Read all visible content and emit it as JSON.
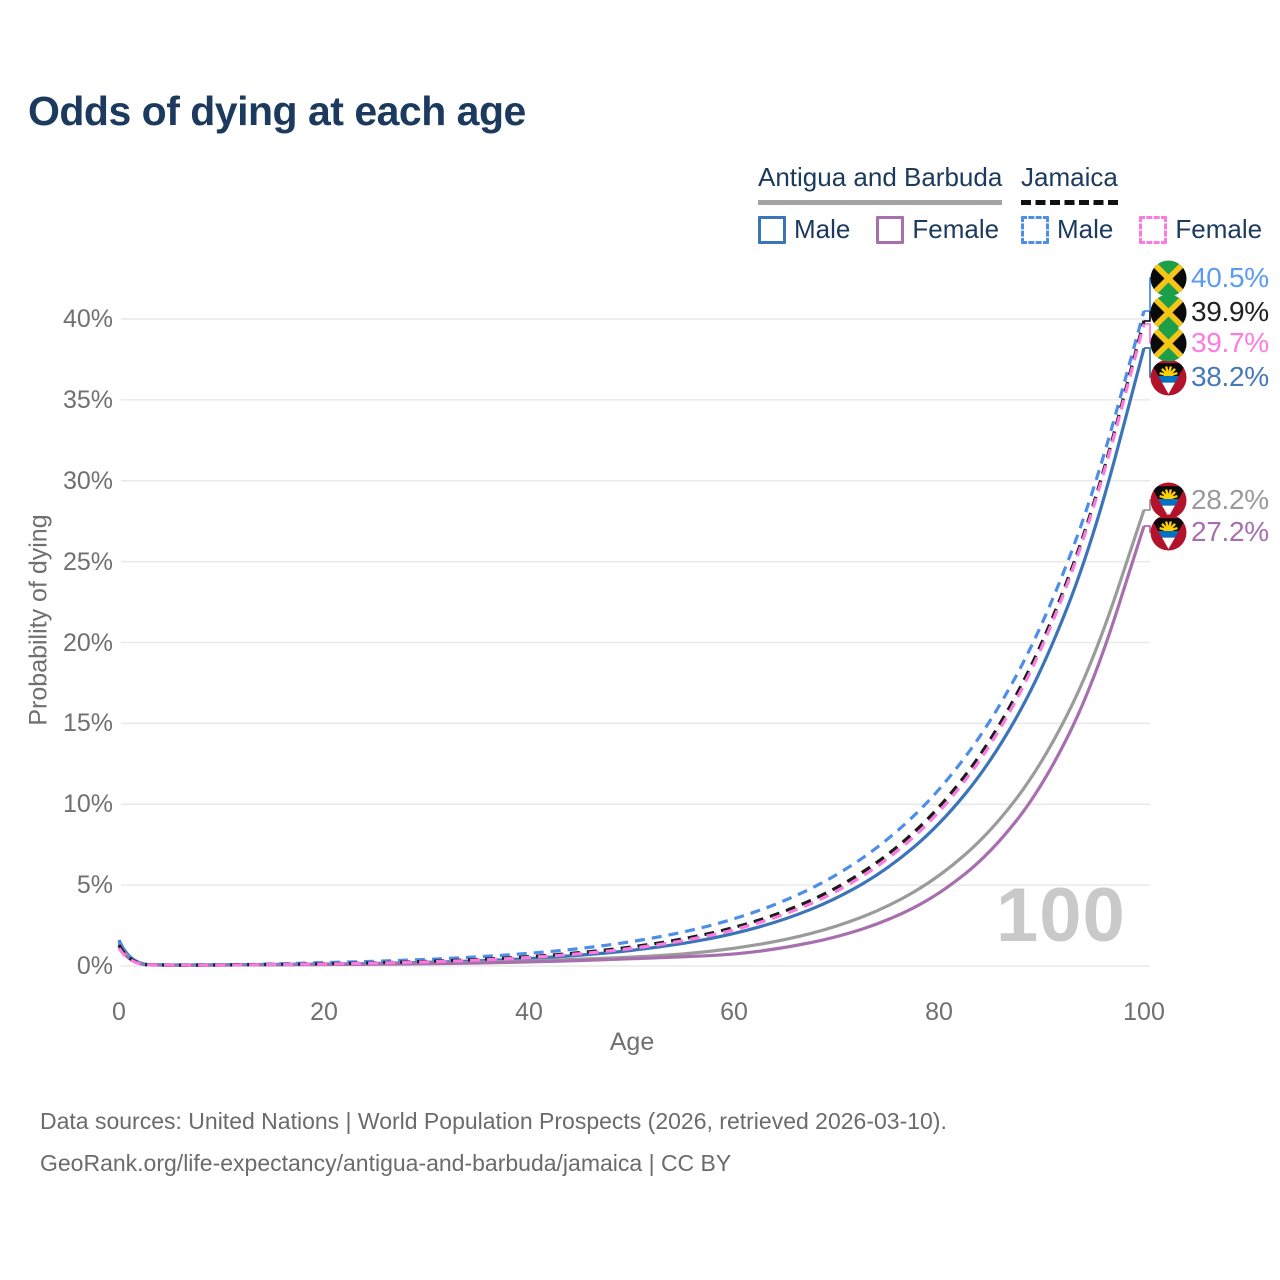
{
  "title": "Odds of dying at each age",
  "watermark": "100",
  "colors": {
    "title_navy": "#1b3a5e",
    "axis_text": "#707070",
    "gridline": "#e9e9e9",
    "watermark_gray": "#c9c9c9",
    "source_text": "#6b6b6b",
    "antigua_underline": "#a3a3a3",
    "jamaica_underline": "#111111"
  },
  "legend": {
    "groups": [
      {
        "label": "Antigua and Barbuda",
        "line_style": "solid",
        "underline_color": "#a3a3a3",
        "items": [
          {
            "label": "Male",
            "color": "#3c74b9",
            "dashed": false
          },
          {
            "label": "Female",
            "color": "#a76fae",
            "dashed": false
          }
        ]
      },
      {
        "label": "Jamaica",
        "line_style": "dashed",
        "underline_color": "#111111",
        "items": [
          {
            "label": "Male",
            "color": "#4d8ee8",
            "dashed": true
          },
          {
            "label": "Female",
            "color": "#fa7ae0",
            "dashed": true
          }
        ]
      }
    ]
  },
  "chart_data": {
    "type": "line",
    "title": "Odds of dying at each age",
    "xlabel": "Age",
    "ylabel": "Probability of dying",
    "xlim": [
      0,
      100
    ],
    "ylim": [
      0,
      40
    ],
    "x_ticks": [
      0,
      20,
      40,
      60,
      80,
      100
    ],
    "y_ticks": [
      0,
      5,
      10,
      15,
      20,
      25,
      30,
      35,
      40
    ],
    "y_tick_suffix": "%",
    "grid": "horizontal",
    "legend_position": "top-right",
    "x": [
      0,
      1,
      5,
      10,
      15,
      20,
      25,
      30,
      35,
      40,
      45,
      50,
      55,
      60,
      65,
      70,
      75,
      80,
      85,
      90,
      95,
      100
    ],
    "series": [
      {
        "id": "antigua-male",
        "name": "Antigua and Barbuda — Male",
        "country": "Antigua and Barbuda",
        "sex": "Male",
        "color": "#3c74b9",
        "label_color": "#4679b8",
        "dash": false,
        "flag": "antigua",
        "end_label": "38.2%",
        "values": [
          1.6,
          0.11,
          0.06,
          0.07,
          0.1,
          0.12,
          0.15,
          0.22,
          0.31,
          0.45,
          0.66,
          0.95,
          1.37,
          1.98,
          2.87,
          4.14,
          5.99,
          8.66,
          12.52,
          18.1,
          26.17,
          38.2
        ]
      },
      {
        "id": "antigua-both",
        "name": "Antigua and Barbuda — Both sexes",
        "country": "Antigua and Barbuda",
        "sex": "Both",
        "color": "#9b9b9b",
        "label_color": "#9a9a9a",
        "dash": false,
        "flag": "antigua",
        "end_label": "28.2%",
        "values": [
          1.4,
          0.1,
          0.05,
          0.06,
          0.09,
          0.1,
          0.13,
          0.17,
          0.23,
          0.31,
          0.42,
          0.55,
          0.72,
          1.07,
          1.61,
          2.42,
          3.64,
          5.48,
          8.24,
          12.39,
          18.65,
          28.2
        ]
      },
      {
        "id": "antigua-female",
        "name": "Antigua and Barbuda — Female",
        "country": "Antigua and Barbuda",
        "sex": "Female",
        "color": "#a76fae",
        "label_color": "#a76fae",
        "dash": false,
        "flag": "antigua",
        "end_label": "27.2%",
        "values": [
          1.2,
          0.09,
          0.04,
          0.05,
          0.08,
          0.09,
          0.11,
          0.14,
          0.18,
          0.25,
          0.33,
          0.45,
          0.56,
          0.71,
          1.12,
          1.77,
          2.79,
          4.4,
          6.94,
          10.95,
          17.26,
          27.2
        ]
      },
      {
        "id": "jamaica-male",
        "name": "Jamaica — Male",
        "country": "Jamaica",
        "sex": "Male",
        "color": "#4d8ee8",
        "label_color": "#5b9bf0",
        "dash": true,
        "flag": "jamaica",
        "end_label": "40.5%",
        "values": [
          1.5,
          0.1,
          0.06,
          0.07,
          0.12,
          0.21,
          0.29,
          0.4,
          0.56,
          0.77,
          1.07,
          1.49,
          2.07,
          2.88,
          4.01,
          5.57,
          7.75,
          10.77,
          14.98,
          20.83,
          28.97,
          40.5
        ]
      },
      {
        "id": "jamaica-both",
        "name": "Jamaica — Both sexes",
        "country": "Jamaica",
        "sex": "Both",
        "color": "#1c1c1c",
        "label_color": "#222222",
        "dash": true,
        "flag": "jamaica",
        "end_label": "39.9%",
        "values": [
          1.3,
          0.09,
          0.05,
          0.06,
          0.1,
          0.14,
          0.2,
          0.28,
          0.4,
          0.57,
          0.82,
          1.16,
          1.65,
          2.35,
          3.35,
          4.77,
          6.8,
          9.68,
          13.79,
          19.64,
          27.97,
          39.9
        ]
      },
      {
        "id": "jamaica-female",
        "name": "Jamaica — Female",
        "country": "Jamaica",
        "sex": "Female",
        "color": "#fa7ae0",
        "label_color": "#ff7ae0",
        "dash": true,
        "flag": "jamaica",
        "end_label": "39.7%",
        "values": [
          1.1,
          0.08,
          0.05,
          0.05,
          0.09,
          0.12,
          0.18,
          0.25,
          0.36,
          0.52,
          0.75,
          1.07,
          1.54,
          2.21,
          3.17,
          4.55,
          6.54,
          9.39,
          13.48,
          19.36,
          27.8,
          39.7
        ]
      }
    ]
  },
  "footer": {
    "line1": "Data sources: United Nations | World Population Prospects (2026, retrieved 2026-03-10).",
    "line2": "GeoRank.org/life-expectancy/antigua-and-barbuda/jamaica | CC BY"
  }
}
